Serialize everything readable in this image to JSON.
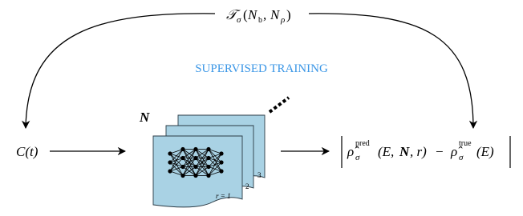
{
  "top_label": {
    "symbol": "𝒯",
    "symbol_sub": "σ",
    "open": "(",
    "n1": "N",
    "n1_sub": "b",
    "sep": ",",
    "n2": "N",
    "n2_sub": "ρ",
    "close": ")"
  },
  "training_label": "SUPERVISED TRAINING",
  "input": "C(t)",
  "stack_label": "N",
  "sheet_labels": [
    "r = 1",
    "2",
    "3"
  ],
  "output": {
    "rho1": "ρ̂",
    "rho1_sub": "σ",
    "rho1_sup": "pred",
    "args1": "(E,",
    "n": "N",
    "args1_end": ", r)",
    "minus": "−",
    "rho2": "ρ̂",
    "rho2_sub": "σ",
    "rho2_sup": "true",
    "args2": "(E)"
  }
}
